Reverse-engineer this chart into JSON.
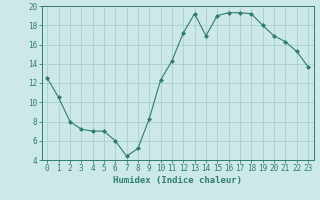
{
  "x": [
    0,
    1,
    2,
    3,
    4,
    5,
    6,
    7,
    8,
    9,
    10,
    11,
    12,
    13,
    14,
    15,
    16,
    17,
    18,
    19,
    20,
    21,
    22,
    23
  ],
  "y": [
    12.5,
    10.5,
    8.0,
    7.2,
    7.0,
    7.0,
    6.0,
    4.4,
    5.2,
    8.3,
    12.3,
    14.3,
    17.2,
    19.2,
    16.9,
    19.0,
    19.3,
    19.3,
    19.2,
    18.0,
    16.9,
    16.3,
    15.3,
    13.7
  ],
  "line_color": "#2e7d6e",
  "marker": "D",
  "marker_size": 2.0,
  "bg_color": "#cde8e8",
  "grid_color": "#aacece",
  "xlabel": "Humidex (Indice chaleur)",
  "ylim": [
    4,
    20
  ],
  "xlim": [
    -0.5,
    23.5
  ],
  "yticks": [
    4,
    6,
    8,
    10,
    12,
    14,
    16,
    18,
    20
  ],
  "xticks": [
    0,
    1,
    2,
    3,
    4,
    5,
    6,
    7,
    8,
    9,
    10,
    11,
    12,
    13,
    14,
    15,
    16,
    17,
    18,
    19,
    20,
    21,
    22,
    23
  ],
  "tick_color": "#2e7d6e",
  "label_fontsize": 6.5,
  "tick_fontsize": 5.5,
  "linewidth": 0.8
}
